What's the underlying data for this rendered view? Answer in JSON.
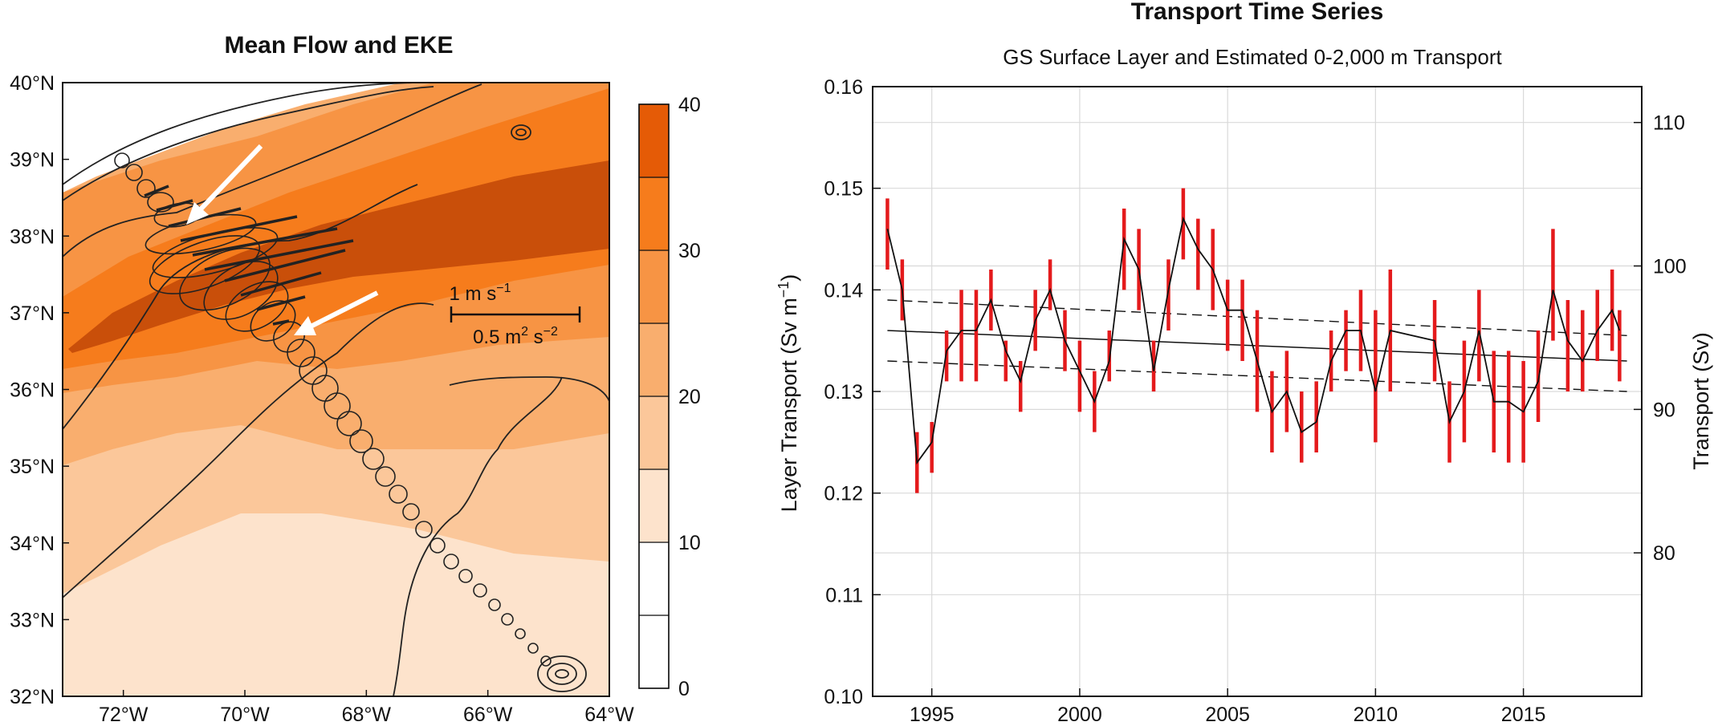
{
  "chart_data": [
    {
      "type": "heatmap",
      "title": "Mean Flow and EKE",
      "x_ticks": [
        "72°W",
        "70°W",
        "68°W",
        "66°W",
        "64°W"
      ],
      "y_ticks": [
        "32°N",
        "33°N",
        "34°N",
        "35°N",
        "36°N",
        "37°N",
        "38°N",
        "39°N",
        "40°N"
      ],
      "xlim": [
        -73,
        -64
      ],
      "ylim": [
        32,
        40
      ],
      "colorbar": {
        "ticks": [
          "0",
          "10",
          "20",
          "30",
          "40"
        ],
        "range": [
          0,
          40
        ],
        "step": 5,
        "colors": [
          "#ffffff",
          "#ffffff",
          "#fde3cc",
          "#fbc79a",
          "#f9ae6e",
          "#f79444",
          "#f67c1c",
          "#e55b06"
        ]
      },
      "scale_labels": {
        "velocity": "1 m s",
        "velocity_exp": "−1",
        "variance": "0.5 m",
        "variance_exp1": "2",
        "variance_mid": " s",
        "variance_exp2": "−2"
      },
      "colors": {
        "shade_light": "#fde3cc",
        "shade_1": "#fbc79a",
        "shade_2": "#f9ae6e",
        "shade_3": "#f79444",
        "shade_core": "#c94f0a"
      }
    },
    {
      "type": "line",
      "title": "Transport Time Series",
      "subtitle": "GS Surface Layer and Estimated 0-2,000 m Transport",
      "ylabel": "Layer Transport (Sv m",
      "ylabel_exp": "−1",
      "ylabel_close": ")",
      "y2label": "Transport (Sv)",
      "xlim": [
        1993,
        2019
      ],
      "ylim": [
        0.1,
        0.16
      ],
      "y2lim": [
        70,
        112.5
      ],
      "x_ticks": [
        1995,
        2000,
        2005,
        2010,
        2015
      ],
      "y_ticks": [
        "0.10",
        "0.11",
        "0.12",
        "0.13",
        "0.14",
        "0.15",
        "0.16"
      ],
      "y2_ticks": [
        80,
        90,
        100,
        110
      ],
      "x": [
        1993.5,
        1994.0,
        1994.5,
        1995.0,
        1995.5,
        1996.0,
        1996.5,
        1997.0,
        1997.5,
        1998.0,
        1998.5,
        1999.0,
        1999.5,
        2000.0,
        2000.5,
        2001.0,
        2001.5,
        2002.0,
        2002.5,
        2003.0,
        2003.5,
        2004.0,
        2004.5,
        2005.0,
        2005.5,
        2006.0,
        2006.5,
        2007.0,
        2007.5,
        2008.0,
        2008.5,
        2009.0,
        2009.5,
        2010.0,
        2010.5,
        2012.0,
        2012.5,
        2013.0,
        2013.5,
        2014.0,
        2014.5,
        2015.0,
        2015.5,
        2016.0,
        2016.5,
        2017.0,
        2017.5,
        2018.0,
        2018.25
      ],
      "values": [
        0.146,
        0.14,
        0.123,
        0.125,
        0.134,
        0.136,
        0.136,
        0.139,
        0.134,
        0.131,
        0.137,
        0.14,
        0.135,
        0.132,
        0.129,
        0.133,
        0.145,
        0.142,
        0.132,
        0.14,
        0.147,
        0.144,
        0.142,
        0.138,
        0.138,
        0.133,
        0.128,
        0.13,
        0.126,
        0.127,
        0.133,
        0.136,
        0.136,
        0.13,
        0.136,
        0.135,
        0.127,
        0.13,
        0.136,
        0.129,
        0.129,
        0.128,
        0.131,
        0.14,
        0.135,
        0.133,
        0.136,
        0.138,
        0.136
      ],
      "error_low": [
        0.142,
        0.137,
        0.12,
        0.122,
        0.131,
        0.131,
        0.131,
        0.136,
        0.131,
        0.128,
        0.134,
        0.138,
        0.132,
        0.128,
        0.126,
        0.131,
        0.14,
        0.138,
        0.13,
        0.136,
        0.143,
        0.14,
        0.138,
        0.134,
        0.133,
        0.128,
        0.124,
        0.126,
        0.123,
        0.124,
        0.13,
        0.132,
        0.132,
        0.125,
        0.13,
        0.131,
        0.123,
        0.125,
        0.131,
        0.124,
        0.123,
        0.123,
        0.127,
        0.135,
        0.13,
        0.13,
        0.133,
        0.134,
        0.131
      ],
      "error_high": [
        0.149,
        0.143,
        0.126,
        0.127,
        0.136,
        0.14,
        0.14,
        0.142,
        0.135,
        0.133,
        0.14,
        0.143,
        0.138,
        0.135,
        0.132,
        0.136,
        0.148,
        0.146,
        0.135,
        0.143,
        0.15,
        0.147,
        0.146,
        0.141,
        0.141,
        0.138,
        0.132,
        0.134,
        0.13,
        0.131,
        0.136,
        0.138,
        0.14,
        0.138,
        0.142,
        0.139,
        0.131,
        0.135,
        0.14,
        0.134,
        0.134,
        0.133,
        0.136,
        0.146,
        0.139,
        0.138,
        0.14,
        0.142,
        0.138
      ],
      "trend": {
        "x": [
          1993.5,
          2018.5
        ],
        "y": [
          0.136,
          0.133
        ]
      },
      "trend_upper": {
        "x": [
          1993.5,
          2018.5
        ],
        "y": [
          0.139,
          0.1355
        ]
      },
      "trend_lower": {
        "x": [
          1993.5,
          2018.5
        ],
        "y": [
          0.133,
          0.13
        ]
      },
      "grid": true,
      "colors": {
        "error_bar": "#e41a1c",
        "line": "#111111",
        "grid": "#d9d9d9"
      }
    }
  ]
}
